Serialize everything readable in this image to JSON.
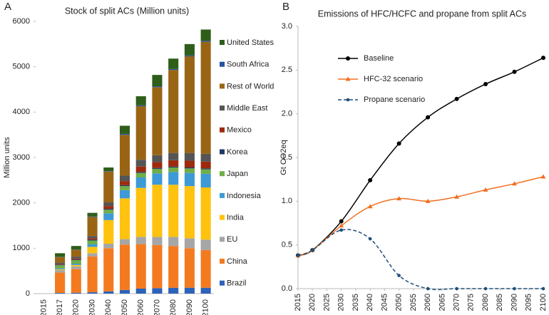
{
  "chart_data": [
    {
      "type": "bar",
      "panel_label": "A",
      "title": "Stock of split ACs (Million units)",
      "y_label": "Million units",
      "categories": [
        "2015",
        "2017",
        "2020",
        "2030",
        "2040",
        "2050",
        "2060",
        "2070",
        "2080",
        "2090",
        "2100"
      ],
      "stacked": true,
      "ylim": [
        0,
        6000
      ],
      "yticks": [
        0,
        1000,
        2000,
        3000,
        4000,
        5000,
        6000
      ],
      "grid": false,
      "legend": "right",
      "series": [
        {
          "name": "Brazil",
          "color": "#2e63b8",
          "values": [
            null,
            15,
            20,
            30,
            50,
            80,
            110,
            120,
            130,
            130,
            130
          ]
        },
        {
          "name": "China",
          "color": "#f47a20",
          "values": [
            null,
            450,
            520,
            790,
            950,
            1000,
            980,
            950,
            920,
            870,
            830
          ]
        },
        {
          "name": "EU",
          "color": "#a6a6a6",
          "values": [
            null,
            55,
            60,
            70,
            100,
            120,
            160,
            180,
            200,
            220,
            230
          ]
        },
        {
          "name": "India",
          "color": "#ffc20e",
          "values": [
            null,
            15,
            30,
            140,
            520,
            900,
            1080,
            1150,
            1150,
            1150,
            1150
          ]
        },
        {
          "name": "Indonesia",
          "color": "#3d9ad6",
          "values": [
            null,
            20,
            30,
            60,
            150,
            180,
            230,
            250,
            280,
            290,
            300
          ]
        },
        {
          "name": "Japan",
          "color": "#70ad47",
          "values": [
            null,
            70,
            80,
            80,
            80,
            90,
            100,
            100,
            100,
            100,
            100
          ]
        },
        {
          "name": "Korea",
          "color": "#1f3864",
          "values": [
            null,
            15,
            15,
            20,
            20,
            20,
            20,
            20,
            20,
            20,
            20
          ]
        },
        {
          "name": "Mexico",
          "color": "#9e2a0e",
          "values": [
            null,
            15,
            20,
            30,
            60,
            90,
            120,
            130,
            140,
            150,
            150
          ]
        },
        {
          "name": "Middle East",
          "color": "#555555",
          "values": [
            null,
            30,
            40,
            50,
            80,
            120,
            150,
            150,
            160,
            170,
            170
          ]
        },
        {
          "name": "Rest of World",
          "color": "#996515",
          "values": [
            null,
            120,
            150,
            420,
            680,
            900,
            1180,
            1500,
            1830,
            2130,
            2470
          ]
        },
        {
          "name": "South Africa",
          "color": "#2453a0",
          "values": [
            null,
            5,
            5,
            10,
            10,
            20,
            20,
            20,
            20,
            20,
            20
          ]
        },
        {
          "name": "United States",
          "color": "#2e5e1a",
          "values": [
            null,
            80,
            80,
            80,
            80,
            180,
            200,
            250,
            230,
            250,
            250
          ]
        }
      ]
    },
    {
      "type": "line",
      "panel_label": "B",
      "title": "Emissions of HFC/HCFC and propane from split ACs",
      "y_label": "Gt CO2eq",
      "x": [
        2015,
        2020,
        2030,
        2040,
        2050,
        2060,
        2070,
        2080,
        2090,
        2100
      ],
      "xlim": [
        2015,
        2100
      ],
      "xticks": [
        2015,
        2020,
        2025,
        2030,
        2035,
        2040,
        2045,
        2050,
        2055,
        2060,
        2065,
        2070,
        2075,
        2080,
        2085,
        2090,
        2095,
        2100
      ],
      "ylim": [
        0,
        3
      ],
      "yticks": [
        {
          "value": 0,
          "label": "0.0"
        },
        0.5,
        {
          "value": 1,
          "label": "1.0"
        },
        1.5,
        {
          "value": 2,
          "label": "2.0"
        },
        2.5,
        {
          "value": 3,
          "label": "3.0"
        }
      ],
      "grid": false,
      "legend": "upper left",
      "smooth": true,
      "series": [
        {
          "name": "Baseline",
          "color": "#000000",
          "marker": "circle",
          "dashed": false,
          "values": [
            0.38,
            0.44,
            0.77,
            1.24,
            1.66,
            1.96,
            2.17,
            2.34,
            2.48,
            2.64
          ]
        },
        {
          "name": "HFC-32 scenario",
          "color": "#f07020",
          "marker": "triangle",
          "dashed": false,
          "values": [
            0.38,
            0.44,
            0.72,
            0.94,
            1.03,
            1.0,
            1.05,
            1.13,
            1.2,
            1.28
          ]
        },
        {
          "name": "Propane scenario",
          "color": "#1f4e79",
          "marker": "circle",
          "dashed": true,
          "values": [
            0.38,
            0.44,
            0.67,
            0.57,
            0.15,
            0.0,
            0.0,
            0.0,
            0.0,
            0.0
          ]
        }
      ]
    }
  ]
}
